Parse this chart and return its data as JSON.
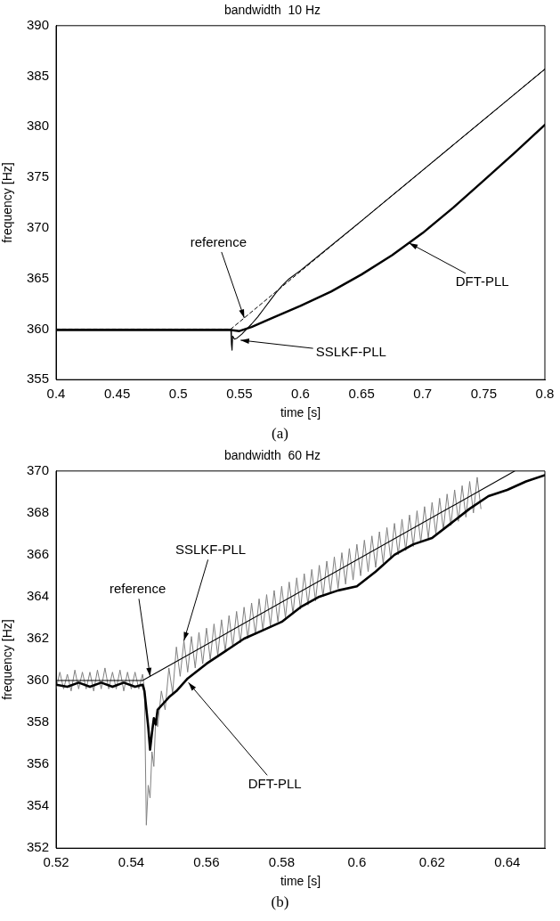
{
  "chart_data": [
    {
      "type": "line",
      "title": "bandwidth  10 Hz",
      "xlabel": "time [s]",
      "ylabel": "frequency [Hz]",
      "xlim": [
        0.4,
        0.8
      ],
      "ylim": [
        355,
        390
      ],
      "xticks": [
        0.4,
        0.45,
        0.5,
        0.55,
        0.6,
        0.65,
        0.7,
        0.75,
        0.8
      ],
      "yticks": [
        355,
        360,
        365,
        370,
        375,
        380,
        385,
        390
      ],
      "series": [
        {
          "color": "#000000",
          "line_style": "dashed",
          "x": [
            0.4,
            0.543,
            0.8
          ],
          "values": [
            360,
            360,
            385.7
          ]
        },
        {
          "color": "#000000",
          "x": [
            0.4,
            0.5,
            0.543,
            0.5435,
            0.544,
            0.5445,
            0.546,
            0.548,
            0.552,
            0.556,
            0.56,
            0.565,
            0.57,
            0.575,
            0.58,
            0.585,
            0.59,
            0.6,
            0.65,
            0.7,
            0.75,
            0.8
          ],
          "values": [
            360,
            360,
            360,
            358.5,
            357.9,
            359.3,
            359.0,
            359.1,
            359.5,
            360,
            360.5,
            361.2,
            362,
            362.8,
            363.6,
            364.3,
            364.9,
            365.8,
            370.7,
            375.7,
            380.7,
            385.7
          ]
        },
        {
          "color": "#000000",
          "x": [
            0.4,
            0.45,
            0.5,
            0.543,
            0.55,
            0.56,
            0.575,
            0.6,
            0.625,
            0.65,
            0.675,
            0.7,
            0.725,
            0.75,
            0.775,
            0.8
          ],
          "values": [
            359.9,
            359.9,
            359.9,
            359.9,
            359.8,
            360.2,
            361,
            362.3,
            363.7,
            365.4,
            367.3,
            369.5,
            372,
            374.7,
            377.4,
            380.2
          ]
        }
      ],
      "annotations": [
        {
          "text": "reference",
          "x": 0.554,
          "y": 361.1
        },
        {
          "text": "SSLKF-PLL",
          "x": 0.551,
          "y": 358.9
        },
        {
          "text": "DFT-PLL",
          "x": 0.689,
          "y": 368.5
        },
        "(a)"
      ]
    },
    {
      "type": "line",
      "title": "bandwidth  60 Hz",
      "xlabel": "time [s]",
      "ylabel": "frequency [Hz]",
      "xlim": [
        0.52,
        0.65
      ],
      "ylim": [
        352,
        370
      ],
      "xticks": [
        0.52,
        0.54,
        0.56,
        0.58,
        0.6,
        0.62,
        0.64
      ],
      "yticks": [
        352,
        354,
        356,
        358,
        360,
        362,
        364,
        366,
        368,
        370
      ],
      "series": [
        {
          "color": "#808080",
          "x": [
            0.52,
            0.521,
            0.522,
            0.523,
            0.524,
            0.525,
            0.526,
            0.527,
            0.528,
            0.529,
            0.53,
            0.531,
            0.532,
            0.533,
            0.534,
            0.535,
            0.536,
            0.537,
            0.538,
            0.539,
            0.54,
            0.541,
            0.542,
            0.543,
            0.5435,
            0.544,
            0.5445,
            0.545,
            0.5455,
            0.546,
            0.5465,
            0.547,
            0.548,
            0.549,
            0.55,
            0.551,
            0.552,
            0.553,
            0.554,
            0.555,
            0.556,
            0.557,
            0.558,
            0.559,
            0.56,
            0.561,
            0.562,
            0.563,
            0.564,
            0.565,
            0.566,
            0.567,
            0.568,
            0.569,
            0.57,
            0.571,
            0.572,
            0.573,
            0.574,
            0.575,
            0.576,
            0.577,
            0.578,
            0.579,
            0.58,
            0.581,
            0.582,
            0.583,
            0.584,
            0.585,
            0.586,
            0.587,
            0.588,
            0.589,
            0.59,
            0.591,
            0.592,
            0.593,
            0.594,
            0.595,
            0.596,
            0.597,
            0.598,
            0.599,
            0.6,
            0.601,
            0.602,
            0.603,
            0.604,
            0.605,
            0.606,
            0.607,
            0.608,
            0.609,
            0.61,
            0.611,
            0.612,
            0.613,
            0.614,
            0.615,
            0.616,
            0.617,
            0.618,
            0.619,
            0.62,
            0.621,
            0.622,
            0.623,
            0.624,
            0.625,
            0.626,
            0.627,
            0.628,
            0.629,
            0.63,
            0.631,
            0.632,
            0.633
          ],
          "values": [
            359.6,
            360.4,
            359.6,
            360.3,
            359.5,
            360.5,
            359.6,
            360.4,
            359.6,
            360.4,
            359.5,
            360.5,
            359.6,
            360.6,
            359.6,
            360.4,
            359.6,
            360.5,
            359.5,
            360.4,
            359.6,
            360.4,
            359.6,
            360.3,
            359.6,
            353.1,
            355.0,
            354.4,
            356.6,
            355.9,
            358.2,
            357.8,
            359.5,
            358.6,
            360.6,
            359.4,
            361.6,
            360.2,
            361.9,
            360.4,
            362.1,
            360.6,
            362.3,
            360.8,
            362.5,
            361.0,
            362.7,
            361.2,
            362.9,
            361.4,
            363.1,
            361.6,
            363.3,
            361.8,
            363.5,
            362.0,
            363.7,
            362.2,
            363.9,
            362.4,
            364.1,
            362.6,
            364.3,
            362.8,
            364.5,
            363.0,
            364.7,
            363.2,
            364.9,
            363.4,
            365.1,
            363.6,
            365.3,
            363.8,
            365.5,
            364.0,
            365.7,
            364.2,
            365.9,
            364.4,
            366.1,
            364.6,
            366.3,
            364.8,
            366.5,
            365.0,
            366.7,
            365.2,
            366.9,
            365.4,
            367.1,
            365.6,
            367.3,
            365.8,
            367.5,
            366.0,
            367.7,
            366.2,
            367.9,
            366.4,
            368.1,
            366.6,
            368.3,
            366.8,
            368.5,
            367.0,
            368.7,
            367.2,
            368.9,
            367.4,
            369.1,
            367.6,
            369.3,
            367.8,
            369.5,
            368.0,
            369.7,
            368.2
          ]
        },
        {
          "color": "#000000",
          "x": [
            0.52,
            0.523,
            0.526,
            0.529,
            0.532,
            0.535,
            0.538,
            0.541,
            0.543,
            0.5435,
            0.5445,
            0.545,
            0.5455,
            0.546,
            0.5465,
            0.547,
            0.548,
            0.55,
            0.552,
            0.555,
            0.56,
            0.565,
            0.57,
            0.575,
            0.58,
            0.585,
            0.59,
            0.595,
            0.6,
            0.605,
            0.61,
            0.615,
            0.62,
            0.625,
            0.63,
            0.635,
            0.64,
            0.645,
            0.65
          ],
          "values": [
            359.8,
            359.7,
            359.9,
            359.7,
            359.9,
            359.7,
            359.9,
            359.7,
            359.8,
            359.5,
            357.8,
            356.7,
            357.5,
            358.2,
            357.9,
            358.6,
            358.8,
            359.2,
            359.5,
            360.1,
            360.8,
            361.4,
            362.0,
            362.4,
            362.8,
            363.5,
            364.0,
            364.3,
            364.5,
            365.2,
            366.0,
            366.5,
            366.8,
            367.5,
            368.2,
            368.8,
            369.1,
            369.5,
            369.8
          ]
        },
        {
          "color": "#000000",
          "x": [
            0.52,
            0.543,
            0.642
          ],
          "values": [
            360,
            360,
            370
          ]
        }
      ],
      "annotations": [
        {
          "text": "SSLKF-PLL",
          "x": 0.554,
          "y": 361.9
        },
        {
          "text": "reference",
          "x": 0.545,
          "y": 360.2
        },
        {
          "text": "DFT-PLL",
          "x": 0.5552,
          "y": 359.9
        },
        "(b)"
      ]
    }
  ]
}
